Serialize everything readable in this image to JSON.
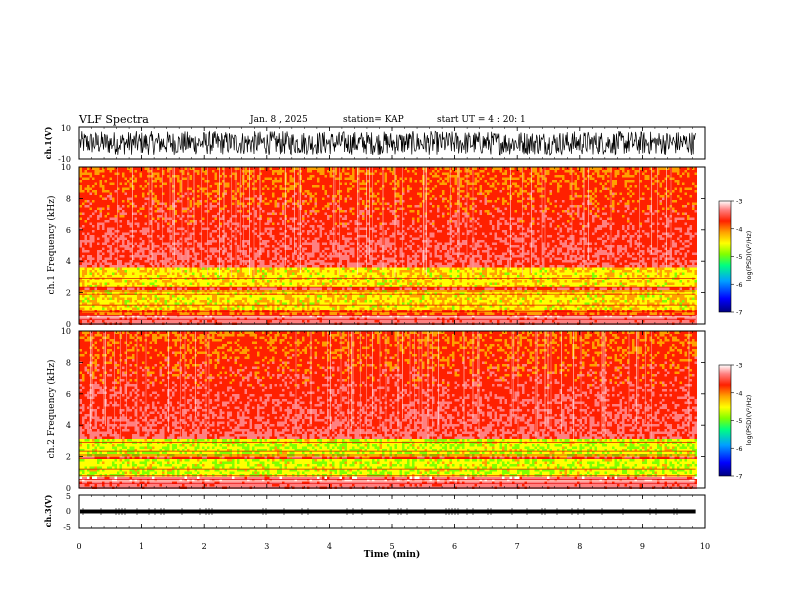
{
  "header": {
    "title": "VLF Spectra",
    "date": "Jan. 8 , 2025",
    "station": "station= KAP",
    "start": "start UT =  4 : 20: 1"
  },
  "colors": {
    "palette": [
      "#000080",
      "#0000ff",
      "#00a0ff",
      "#00ff80",
      "#80ff00",
      "#ffff00",
      "#ffa000",
      "#ff2000",
      "#ff8080",
      "#ffffff"
    ]
  },
  "chart_data": [
    {
      "type": "line",
      "name": "ch1-waveform",
      "ylabel": "ch.1(V)",
      "ylim": [
        -10,
        10
      ],
      "ytick_labels": [
        "10",
        "-10"
      ],
      "xlim": [
        0,
        9.85
      ],
      "description_values": "dense noise waveform, amplitude ~ ±8 V"
    },
    {
      "type": "heatmap",
      "name": "ch1-spectrogram",
      "ylabel": "ch.1  Frequency (kHz)",
      "ylim": [
        0,
        10
      ],
      "ytick_labels": [
        "0",
        "2",
        "4",
        "6",
        "8",
        "10"
      ],
      "xlim": [
        0,
        9.85
      ],
      "colorbar": {
        "label": "log(PSD)(V²/Hz)",
        "range": [
          -7,
          -3
        ],
        "tick_labels": [
          "-3",
          "-4",
          "-5",
          "-6",
          "-7"
        ]
      },
      "bands_khz": [
        {
          "low": 1.0,
          "high": 3.6,
          "level": -4.7
        },
        {
          "low": 2.2,
          "high": 2.4,
          "level": -3.8
        },
        {
          "low": 0.6,
          "high": 0.9,
          "level": -4.2
        }
      ]
    },
    {
      "type": "heatmap",
      "name": "ch2-spectrogram",
      "ylabel": "ch.2  Frequency (kHz)",
      "ylim": [
        0,
        10
      ],
      "ytick_labels": [
        "0",
        "2",
        "4",
        "6",
        "8",
        "10"
      ],
      "xlim": [
        0,
        9.85
      ],
      "colorbar": {
        "label": "log(PSD)(V²/Hz)",
        "range": [
          -7,
          -3
        ],
        "tick_labels": [
          "-3",
          "-4",
          "-5",
          "-6",
          "-7"
        ]
      },
      "bands_khz": [
        {
          "low": 0.8,
          "high": 3.2,
          "level": -4.9
        },
        {
          "low": 1.9,
          "high": 2.1,
          "level": -3.9
        }
      ]
    },
    {
      "type": "line",
      "name": "ch3-waveform",
      "ylabel": "ch.3(V)",
      "ylim": [
        -5,
        5
      ],
      "ytick_labels": [
        "5",
        "0",
        "-5"
      ],
      "xlim": [
        0,
        9.85
      ],
      "level_v": 0,
      "amplitude_v": 0.6
    }
  ],
  "xaxis": {
    "label": "Time  (min)",
    "ticks": [
      0,
      1,
      2,
      3,
      4,
      5,
      6,
      7,
      8,
      9,
      10
    ],
    "tick_labels": [
      "0",
      "1",
      "2",
      "3",
      "4",
      "5",
      "6",
      "7",
      "8",
      "9",
      "10"
    ],
    "range": [
      0,
      10
    ],
    "data_end": 9.85
  }
}
